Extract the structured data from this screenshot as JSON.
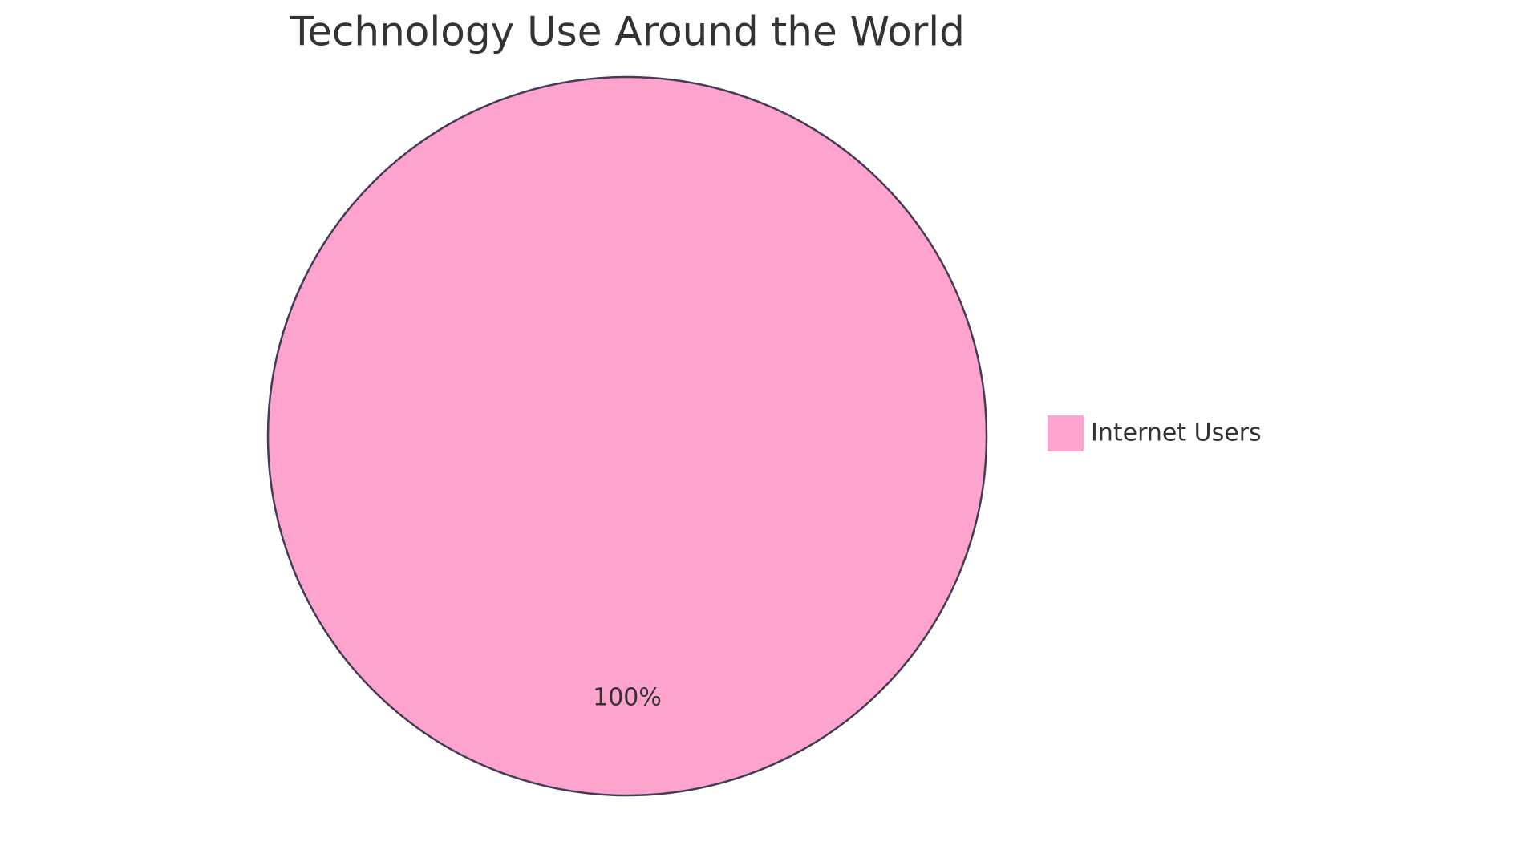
{
  "chart_data": {
    "type": "pie",
    "title": "Technology Use Around the World",
    "categories": [
      "Internet Users"
    ],
    "values": [
      100
    ],
    "value_labels": [
      "100%"
    ],
    "colors": [
      "#fea3cd"
    ],
    "legend": "right"
  }
}
